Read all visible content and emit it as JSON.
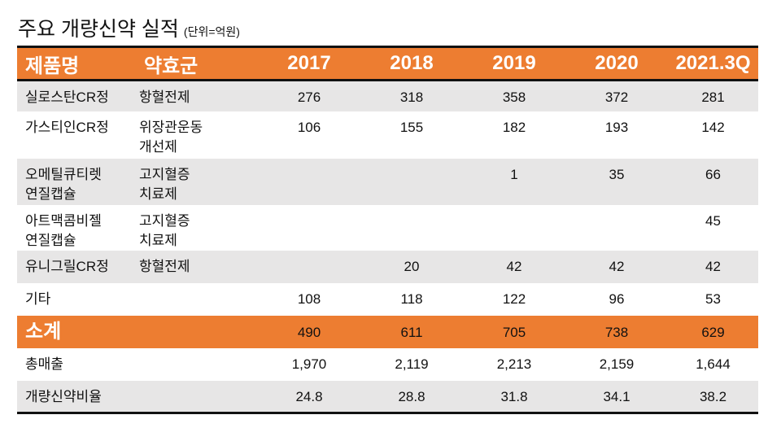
{
  "title": "주요 개량신약 실적",
  "unit": "(단위=억원)",
  "chart_data": {
    "type": "table",
    "title": "주요 개량신약 실적",
    "unit": "(단위=억원)",
    "columns": [
      "제품명",
      "약효군",
      "2017",
      "2018",
      "2019",
      "2020",
      "2021.3Q"
    ],
    "rows": [
      {
        "name": [
          "실로스탄CR정"
        ],
        "efficacy": [
          "항혈전제"
        ],
        "values": [
          "276",
          "318",
          "358",
          "372",
          "281"
        ]
      },
      {
        "name": [
          "가스티인CR정"
        ],
        "efficacy": [
          "위장관운동",
          "개선제"
        ],
        "values": [
          "106",
          "155",
          "182",
          "193",
          "142"
        ]
      },
      {
        "name": [
          "오메틸큐티렛",
          "연질캡슐"
        ],
        "efficacy": [
          "고지혈증",
          "치료제"
        ],
        "values": [
          "",
          "",
          "1",
          "35",
          "66"
        ]
      },
      {
        "name": [
          "아트맥콤비젤",
          "연질캡슐"
        ],
        "efficacy": [
          "고지혈증",
          "치료제"
        ],
        "values": [
          "",
          "",
          "",
          "",
          "45"
        ]
      },
      {
        "name": [
          "유니그릴CR정"
        ],
        "efficacy": [
          "항혈전제"
        ],
        "values": [
          "",
          "20",
          "42",
          "42",
          "42"
        ]
      },
      {
        "name": [
          "기타"
        ],
        "efficacy": [
          ""
        ],
        "values": [
          "108",
          "118",
          "122",
          "96",
          "53"
        ]
      }
    ],
    "subtotal": {
      "label": "소계",
      "values": [
        "490",
        "611",
        "705",
        "738",
        "629"
      ]
    },
    "total_sales": {
      "label": "총매출",
      "values": [
        "1,970",
        "2,119",
        "2,213",
        "2,159",
        "1,644"
      ]
    },
    "ratio": {
      "label": "개량신약비율",
      "values": [
        "24.8",
        "28.8",
        "31.8",
        "34.1",
        "38.2"
      ]
    }
  },
  "colors": {
    "accent": "#ed7d31",
    "stripe": "#e7e6e6"
  }
}
